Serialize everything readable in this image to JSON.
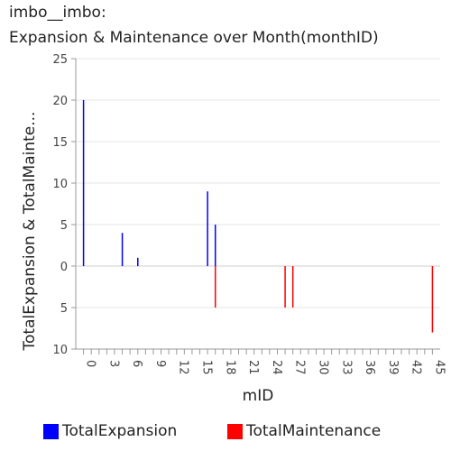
{
  "title_line1": "imbo__imbo:",
  "title_line2": "Expansion & Maintenance over Month(monthID)",
  "chart_data": {
    "type": "bar",
    "xlabel": "mID",
    "ylabel": "TotalExpansion & TotalMainte...",
    "x_ticks": [
      "0",
      "3",
      "6",
      "9",
      "12",
      "15",
      "18",
      "21",
      "24",
      "27",
      "30",
      "33",
      "36",
      "39",
      "42",
      "45"
    ],
    "xlim": [
      -1,
      46
    ],
    "ylim": [
      -10,
      25
    ],
    "y_ticks": [
      {
        "value": 25,
        "label": "25"
      },
      {
        "value": 20,
        "label": "20"
      },
      {
        "value": 15,
        "label": "15"
      },
      {
        "value": 10,
        "label": "10"
      },
      {
        "value": 5,
        "label": "5"
      },
      {
        "value": 0,
        "label": "0"
      },
      {
        "value": -5,
        "label": "5"
      },
      {
        "value": -10,
        "label": "10"
      }
    ],
    "series": [
      {
        "name": "TotalExpansion",
        "color": "#0000ff",
        "points": [
          {
            "x": 0,
            "y": 20
          },
          {
            "x": 5,
            "y": 4
          },
          {
            "x": 7,
            "y": 1
          },
          {
            "x": 16,
            "y": 9
          },
          {
            "x": 17,
            "y": 5
          }
        ]
      },
      {
        "name": "TotalMaintenance",
        "color": "#ff0000",
        "points": [
          {
            "x": 17,
            "y": -5
          },
          {
            "x": 26,
            "y": -5
          },
          {
            "x": 27,
            "y": -5
          },
          {
            "x": 45,
            "y": -8
          }
        ]
      }
    ],
    "legend_position": "bottom"
  }
}
